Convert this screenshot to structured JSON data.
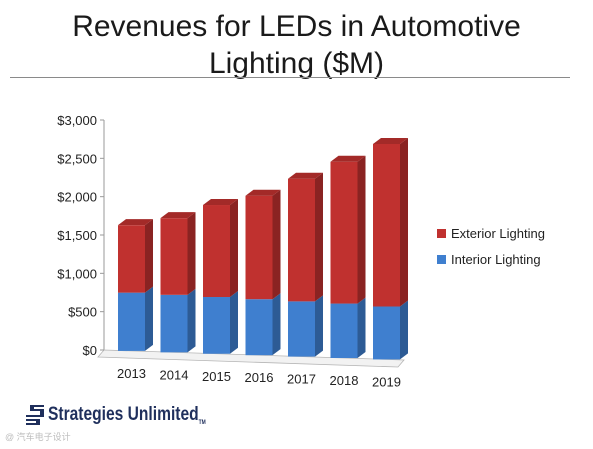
{
  "slide": {
    "title": "Revenues for LEDs in Automotive\nLighting ($M)",
    "logo_text": "Strategies Unlimited",
    "logo_tm": "TM",
    "watermark": "@ 汽车电子设计"
  },
  "colors": {
    "exterior": "#c0312f",
    "interior": "#3f7fcf",
    "logo": "#1f2f5c"
  },
  "chart_data": {
    "type": "bar",
    "stacked": true,
    "three_d": true,
    "title": "Revenues for LEDs in Automotive Lighting ($M)",
    "categories": [
      "2013",
      "2014",
      "2015",
      "2016",
      "2017",
      "2018",
      "2019"
    ],
    "series": [
      {
        "name": "Interior Lighting",
        "values": [
          760,
          750,
          740,
          730,
          720,
          710,
          690
        ]
      },
      {
        "name": "Exterior Lighting",
        "values": [
          880,
          1000,
          1200,
          1350,
          1600,
          1850,
          2120
        ]
      }
    ],
    "y_ticks": [
      "$0",
      "$500",
      "$1,000",
      "$1,500",
      "$2,000",
      "$2,500",
      "$3,000"
    ],
    "ylim": [
      0,
      3000
    ],
    "grid": false,
    "legend": {
      "position": "right",
      "order": [
        "Exterior Lighting",
        "Interior Lighting"
      ]
    }
  }
}
